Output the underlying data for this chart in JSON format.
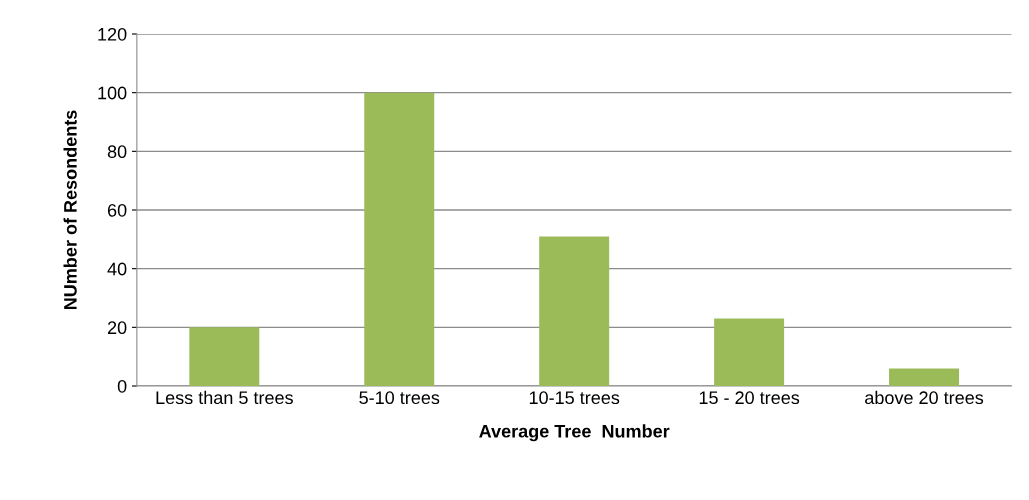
{
  "chart_data": {
    "type": "bar",
    "xlabel": "Average Tree  Number",
    "ylabel": "NUmber of Resondents",
    "categories": [
      "Less than 5 trees",
      "5-10 trees",
      "10-15 trees",
      "15 - 20 trees",
      "above 20 trees"
    ],
    "values": [
      20,
      100,
      51,
      23,
      6
    ],
    "color": "#9bbb59",
    "ylim": [
      0,
      120
    ],
    "yticks": [
      0,
      20,
      40,
      60,
      80,
      100,
      120
    ],
    "grid": "y"
  }
}
